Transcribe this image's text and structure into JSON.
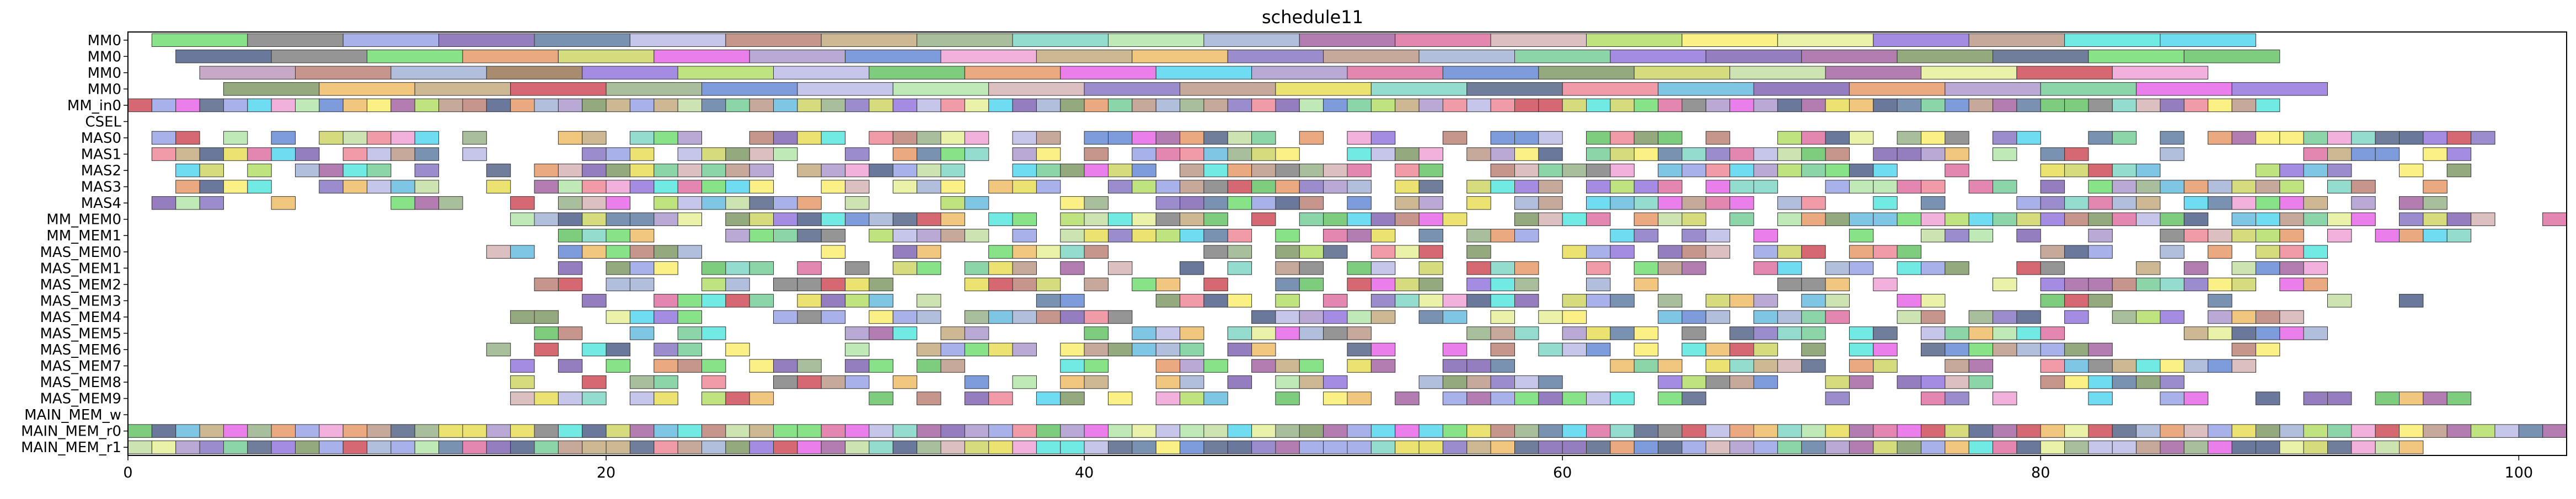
{
  "chart_data": {
    "type": "gantt",
    "title": "schedule11",
    "xlabel": "",
    "ylabel": "",
    "xlim": [
      0,
      102
    ],
    "xticks": [
      0,
      20,
      40,
      60,
      80,
      100
    ],
    "xtick_labels": [
      "0",
      "20",
      "40",
      "60",
      "80",
      "100"
    ],
    "grid": false,
    "legend": "none",
    "rows": [
      "MM0",
      "MM0",
      "MM0",
      "MM0",
      "MM_in0",
      "CSEL",
      "MAS0",
      "MAS1",
      "MAS2",
      "MAS3",
      "MAS4",
      "MM_MEM0",
      "MM_MEM1",
      "MAS_MEM0",
      "MAS_MEM1",
      "MAS_MEM2",
      "MAS_MEM3",
      "MAS_MEM4",
      "MAS_MEM5",
      "MAS_MEM6",
      "MAS_MEM7",
      "MAS_MEM8",
      "MAS_MEM9",
      "MAIN_MEM_w",
      "MAIN_MEM_r0",
      "MAIN_MEM_r1"
    ],
    "palette": [
      "#7be07b",
      "#8a8a8a",
      "#a0a8e8",
      "#8a70b8",
      "#6a86aa",
      "#c0c0e8",
      "#c08a80",
      "#c8b088",
      "#a0b890",
      "#88d8c8",
      "#b8e8b0",
      "#a8b8d8",
      "#aa70a8",
      "#e07aa8",
      "#d8b8b8",
      "#b8e070",
      "#f8f078",
      "#e8f0a0",
      "#9a80e0",
      "#c0a090",
      "#60e8e0",
      "#60d8f0",
      "#e8a070",
      "#f0a8d8",
      "#7090d8",
      "#d0d870",
      "#f0c070",
      "#b0a0d0",
      "#8aa070",
      "#e870e8",
      "#70c870",
      "#9080c8",
      "#d05860",
      "#c8e0a8",
      "#607090",
      "#80d0a0",
      "#f090a0",
      "#70c0e0",
      "#e8e060",
      "#5a6a90"
    ],
    "segments": [
      {
        "row": 0,
        "start": 1,
        "end": 5,
        "color": "#7be07b"
      },
      {
        "row": 0,
        "start": 5,
        "end": 9,
        "color": "#8a8a8a"
      },
      {
        "row": 0,
        "start": 9,
        "end": 13,
        "color": "#a0a8e8"
      },
      {
        "row": 0,
        "start": 13,
        "end": 17,
        "color": "#8a70b8"
      },
      {
        "row": 0,
        "start": 17,
        "end": 21,
        "color": "#6a86aa"
      },
      {
        "row": 0,
        "start": 21,
        "end": 25,
        "color": "#c0c0e8"
      },
      {
        "row": 0,
        "start": 25,
        "end": 29,
        "color": "#c08a80"
      },
      {
        "row": 0,
        "start": 29,
        "end": 33,
        "color": "#c8b088"
      },
      {
        "row": 0,
        "start": 33,
        "end": 37,
        "color": "#a0b890"
      },
      {
        "row": 0,
        "start": 37,
        "end": 41,
        "color": "#88d8c8"
      },
      {
        "row": 0,
        "start": 41,
        "end": 45,
        "color": "#b8e8b0"
      },
      {
        "row": 0,
        "start": 45,
        "end": 49,
        "color": "#a8b8d8"
      },
      {
        "row": 0,
        "start": 49,
        "end": 53,
        "color": "#aa70a8"
      },
      {
        "row": 0,
        "start": 53,
        "end": 57,
        "color": "#e07aa8"
      },
      {
        "row": 0,
        "start": 57,
        "end": 61,
        "color": "#d8b8b8"
      },
      {
        "row": 0,
        "start": 61,
        "end": 65,
        "color": "#b8e070"
      },
      {
        "row": 0,
        "start": 65,
        "end": 69,
        "color": "#f8f078"
      },
      {
        "row": 0,
        "start": 69,
        "end": 73,
        "color": "#e8f0a0"
      },
      {
        "row": 0,
        "start": 73,
        "end": 77,
        "color": "#9a80e0"
      },
      {
        "row": 0,
        "start": 77,
        "end": 81,
        "color": "#c0a090"
      },
      {
        "row": 0,
        "start": 81,
        "end": 85,
        "color": "#60e8e0"
      },
      {
        "row": 0,
        "start": 85,
        "end": 89,
        "color": "#60d8f0"
      },
      {
        "row": 1,
        "start": 2,
        "end": 6,
        "color": "#5a6a90"
      },
      {
        "row": 1,
        "start": 6,
        "end": 10,
        "color": "#8a8a8a"
      },
      {
        "row": 1,
        "start": 10,
        "end": 14,
        "color": "#7be07b"
      },
      {
        "row": 1,
        "start": 14,
        "end": 18,
        "color": "#e8a070"
      },
      {
        "row": 1,
        "start": 18,
        "end": 22,
        "color": "#d0d870"
      },
      {
        "row": 1,
        "start": 22,
        "end": 26,
        "color": "#e870e8"
      },
      {
        "row": 1,
        "start": 26,
        "end": 30,
        "color": "#b0a0d0"
      },
      {
        "row": 1,
        "start": 30,
        "end": 34,
        "color": "#7090d8"
      },
      {
        "row": 1,
        "start": 34,
        "end": 38,
        "color": "#f0a8d8"
      },
      {
        "row": 1,
        "start": 38,
        "end": 42,
        "color": "#c8b088"
      },
      {
        "row": 1,
        "start": 42,
        "end": 46,
        "color": "#f0c070"
      },
      {
        "row": 1,
        "start": 46,
        "end": 50,
        "color": "#9080c8"
      },
      {
        "row": 1,
        "start": 50,
        "end": 54,
        "color": "#c0a090"
      },
      {
        "row": 1,
        "start": 54,
        "end": 58,
        "color": "#a8b8d8"
      },
      {
        "row": 1,
        "start": 58,
        "end": 62,
        "color": "#80d0a0"
      },
      {
        "row": 1,
        "start": 62,
        "end": 66,
        "color": "#9a80e0"
      },
      {
        "row": 1,
        "start": 66,
        "end": 70,
        "color": "#8a70b8"
      },
      {
        "row": 1,
        "start": 70,
        "end": 74,
        "color": "#aa70a8"
      },
      {
        "row": 1,
        "start": 74,
        "end": 78,
        "color": "#8aa070"
      },
      {
        "row": 1,
        "start": 78,
        "end": 82,
        "color": "#607090"
      },
      {
        "row": 1,
        "start": 82,
        "end": 86,
        "color": "#7be07b"
      },
      {
        "row": 1,
        "start": 86,
        "end": 90,
        "color": "#70c870"
      },
      {
        "row": 2,
        "start": 3,
        "end": 7,
        "color": "#c0a0c0"
      },
      {
        "row": 2,
        "start": 7,
        "end": 11,
        "color": "#c08a80"
      },
      {
        "row": 2,
        "start": 11,
        "end": 15,
        "color": "#a8b8d8"
      },
      {
        "row": 2,
        "start": 15,
        "end": 19,
        "color": "#a08060"
      },
      {
        "row": 2,
        "start": 19,
        "end": 23,
        "color": "#9a80e0"
      },
      {
        "row": 2,
        "start": 23,
        "end": 27,
        "color": "#b8e070"
      },
      {
        "row": 2,
        "start": 27,
        "end": 31,
        "color": "#c0c0e8"
      },
      {
        "row": 2,
        "start": 31,
        "end": 35,
        "color": "#70c870"
      },
      {
        "row": 2,
        "start": 35,
        "end": 39,
        "color": "#e8a070"
      },
      {
        "row": 2,
        "start": 39,
        "end": 43,
        "color": "#e870e8"
      },
      {
        "row": 2,
        "start": 43,
        "end": 47,
        "color": "#60d8f0"
      },
      {
        "row": 2,
        "start": 47,
        "end": 51,
        "color": "#b0a0d0"
      },
      {
        "row": 2,
        "start": 51,
        "end": 55,
        "color": "#e07aa8"
      },
      {
        "row": 2,
        "start": 55,
        "end": 59,
        "color": "#7090d8"
      },
      {
        "row": 2,
        "start": 59,
        "end": 63,
        "color": "#8aa070"
      },
      {
        "row": 2,
        "start": 63,
        "end": 67,
        "color": "#d0d870"
      },
      {
        "row": 2,
        "start": 67,
        "end": 71,
        "color": "#c8e0a8"
      },
      {
        "row": 2,
        "start": 71,
        "end": 75,
        "color": "#aa70a8"
      },
      {
        "row": 2,
        "start": 75,
        "end": 79,
        "color": "#e8f0a0"
      },
      {
        "row": 2,
        "start": 79,
        "end": 83,
        "color": "#d05860"
      },
      {
        "row": 2,
        "start": 83,
        "end": 87,
        "color": "#f0a8d8"
      },
      {
        "row": 3,
        "start": 4,
        "end": 8,
        "color": "#8aa070"
      },
      {
        "row": 3,
        "start": 8,
        "end": 12,
        "color": "#f0c070"
      },
      {
        "row": 3,
        "start": 12,
        "end": 16,
        "color": "#c8b088"
      },
      {
        "row": 3,
        "start": 16,
        "end": 20,
        "color": "#d05860"
      },
      {
        "row": 3,
        "start": 20,
        "end": 24,
        "color": "#a0b890"
      },
      {
        "row": 3,
        "start": 24,
        "end": 28,
        "color": "#7090d8"
      },
      {
        "row": 3,
        "start": 28,
        "end": 32,
        "color": "#c0c0e8"
      },
      {
        "row": 3,
        "start": 32,
        "end": 36,
        "color": "#b8e8b0"
      },
      {
        "row": 3,
        "start": 36,
        "end": 40,
        "color": "#d8b8b8"
      },
      {
        "row": 3,
        "start": 40,
        "end": 44,
        "color": "#9080c8"
      },
      {
        "row": 3,
        "start": 44,
        "end": 48,
        "color": "#c0a090"
      },
      {
        "row": 3,
        "start": 48,
        "end": 52,
        "color": "#e8e060"
      },
      {
        "row": 3,
        "start": 52,
        "end": 56,
        "color": "#88d8c8"
      },
      {
        "row": 3,
        "start": 56,
        "end": 60,
        "color": "#607090"
      },
      {
        "row": 3,
        "start": 60,
        "end": 64,
        "color": "#f090a0"
      },
      {
        "row": 3,
        "start": 64,
        "end": 68,
        "color": "#70c0e0"
      },
      {
        "row": 3,
        "start": 68,
        "end": 72,
        "color": "#8a70b8"
      },
      {
        "row": 3,
        "start": 72,
        "end": 76,
        "color": "#e8a070"
      },
      {
        "row": 3,
        "start": 76,
        "end": 80,
        "color": "#b0a0d0"
      },
      {
        "row": 3,
        "start": 80,
        "end": 84,
        "color": "#80d0a0"
      },
      {
        "row": 3,
        "start": 84,
        "end": 88,
        "color": "#e870e8"
      },
      {
        "row": 3,
        "start": 88,
        "end": 92,
        "color": "#9a80e0"
      }
    ],
    "cell_rows": [
      {
        "row": 4,
        "start": 0,
        "end": 90,
        "density": 1.0,
        "seed": 11
      },
      {
        "row": 6,
        "start": 1,
        "end": 99,
        "density": 0.72,
        "seed": 23
      },
      {
        "row": 7,
        "start": 1,
        "end": 98,
        "density": 0.72,
        "seed": 37
      },
      {
        "row": 8,
        "start": 2,
        "end": 98,
        "density": 0.7,
        "seed": 41
      },
      {
        "row": 9,
        "start": 2,
        "end": 97,
        "density": 0.68,
        "seed": 53
      },
      {
        "row": 10,
        "start": 1,
        "end": 97,
        "density": 0.68,
        "seed": 67
      },
      {
        "row": 11,
        "start": 15,
        "end": 102,
        "density": 0.82,
        "seed": 71
      },
      {
        "row": 12,
        "start": 15,
        "end": 100,
        "density": 0.7,
        "seed": 83
      },
      {
        "row": 13,
        "start": 15,
        "end": 92,
        "density": 0.66,
        "seed": 97
      },
      {
        "row": 14,
        "start": 16,
        "end": 92,
        "density": 0.66,
        "seed": 101
      },
      {
        "row": 15,
        "start": 16,
        "end": 92,
        "density": 0.62,
        "seed": 113
      },
      {
        "row": 16,
        "start": 18,
        "end": 96,
        "density": 0.55,
        "seed": 127
      },
      {
        "row": 17,
        "start": 16,
        "end": 91,
        "density": 0.62,
        "seed": 131
      },
      {
        "row": 18,
        "start": 16,
        "end": 92,
        "density": 0.62,
        "seed": 139
      },
      {
        "row": 19,
        "start": 15,
        "end": 90,
        "density": 0.64,
        "seed": 149
      },
      {
        "row": 20,
        "start": 15,
        "end": 89,
        "density": 0.62,
        "seed": 157
      },
      {
        "row": 21,
        "start": 15,
        "end": 87,
        "density": 0.6,
        "seed": 163
      },
      {
        "row": 22,
        "start": 16,
        "end": 98,
        "density": 0.58,
        "seed": 173
      },
      {
        "row": 24,
        "start": 0,
        "end": 102,
        "density": 1.0,
        "seed": 181
      },
      {
        "row": 25,
        "start": 0,
        "end": 96,
        "density": 1.0,
        "seed": 191
      }
    ]
  }
}
